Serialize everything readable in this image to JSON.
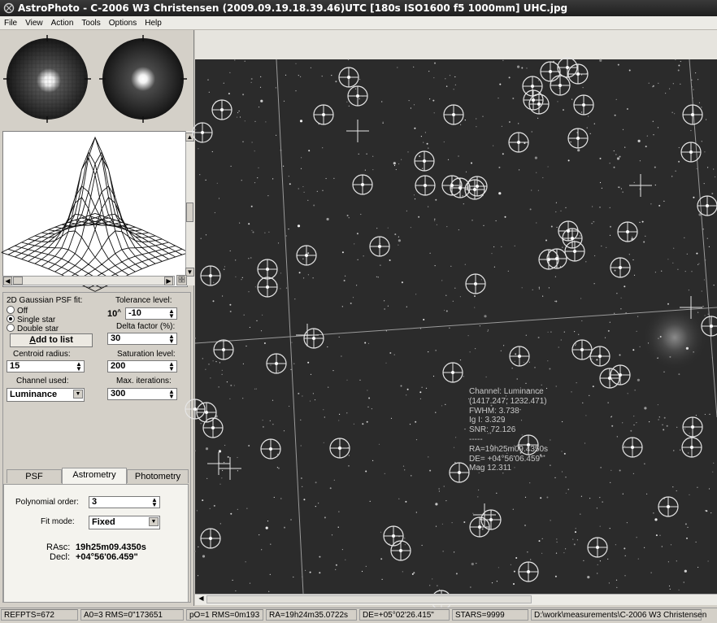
{
  "window": {
    "title": "AstroPhoto - C-2006 W3 Christensen (2009.09.19.18.39.46)UTC [180s ISO1600 f5 1000mm] UHC.jpg",
    "icon": "astrophoto-app-icon"
  },
  "menu": [
    "File",
    "View",
    "Action",
    "Tools",
    "Options",
    "Help"
  ],
  "psf_fit": {
    "label": "2D Gaussian PSF fit:",
    "options": [
      "Off",
      "Single star",
      "Double star"
    ],
    "selected": "Single star",
    "add_button": "Add to list",
    "add_button_rest": "dd to list",
    "add_button_accel": "A"
  },
  "tolerance": {
    "label": "Tolerance level:",
    "base": "10",
    "exp_prefix": "^",
    "value": "-10"
  },
  "delta": {
    "label": "Delta factor (%):",
    "value": "30"
  },
  "centroid": {
    "label": "Centroid radius:",
    "value": "15"
  },
  "saturation": {
    "label": "Saturation level:",
    "value": "200"
  },
  "channel": {
    "label": "Channel used:",
    "value": "Luminance"
  },
  "iterations": {
    "label": "Max. iterations:",
    "value": "300"
  },
  "tabs": [
    "PSF",
    "Astrometry",
    "Photometry"
  ],
  "active_tab": "Astrometry",
  "astrometry": {
    "poly_label": "Polynomial order:",
    "poly_value": "3",
    "fit_label": "Fit mode:",
    "fit_value": "Fixed",
    "rasc_label": "RAsc:",
    "rasc_value": "19h25m09.4350s",
    "decl_label": "Decl:",
    "decl_value": "+04°56'06.459\""
  },
  "overlay": {
    "channel": "Channel: Luminance",
    "coords": "(1417.247; 1232.471)",
    "fwhm": "FWHM: 3.738",
    "ig": "Ig I: 3.329",
    "snr": "SNR: 72.126",
    "sep": "-----",
    "ra": "RA=19h25m09.4350s",
    "de": "DE= +04°56'06.459\"",
    "mag": "Mag 12.311"
  },
  "status": [
    "REFPTS=672",
    "A0=3 RMS=0\"173651",
    "pO=1 RMS=0m193",
    "RA=19h24m35.0722s",
    "DE=+05°02'26.415\"",
    "STARS=9999",
    "D:\\work\\measurements\\C-2006 W3 Christensen"
  ]
}
